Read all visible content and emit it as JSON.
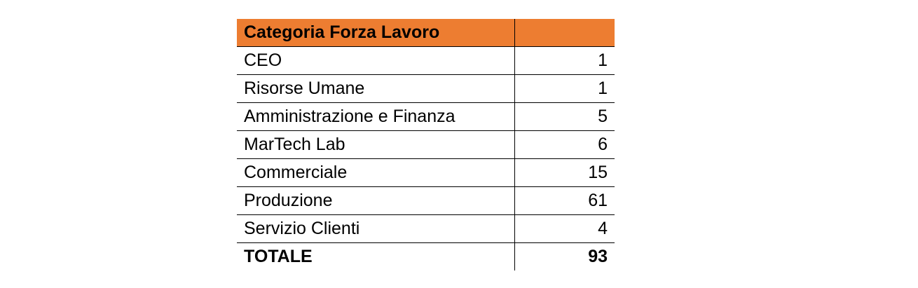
{
  "table": {
    "header": {
      "category_label": "Categoria Forza Lavoro",
      "value_label": ""
    },
    "rows": [
      {
        "label": "CEO",
        "value": "1"
      },
      {
        "label": "Risorse Umane",
        "value": "1"
      },
      {
        "label": "Amministrazione e Finanza",
        "value": "5"
      },
      {
        "label": "MarTech Lab",
        "value": "6"
      },
      {
        "label": "Commerciale",
        "value": "15"
      },
      {
        "label": "Produzione",
        "value": "61"
      },
      {
        "label": "Servizio Clienti",
        "value": "4"
      }
    ],
    "total": {
      "label": "TOTALE",
      "value": "93"
    }
  },
  "colors": {
    "header_background": "#ED7D31",
    "border": "#000000"
  }
}
